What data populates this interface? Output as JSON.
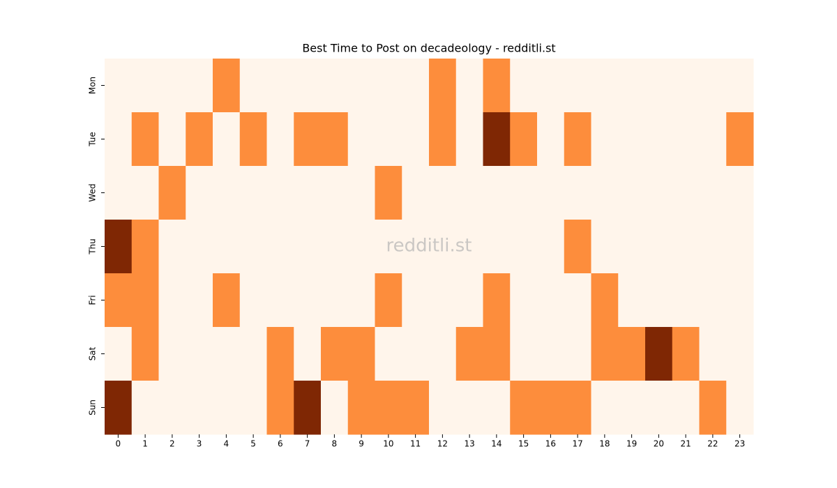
{
  "chart_data": {
    "type": "heatmap",
    "title": "Best Time to Post on decadeology - redditli.st",
    "watermark": "redditli.st",
    "x": [
      0,
      1,
      2,
      3,
      4,
      5,
      6,
      7,
      8,
      9,
      10,
      11,
      12,
      13,
      14,
      15,
      16,
      17,
      18,
      19,
      20,
      21,
      22,
      23
    ],
    "y": [
      "Mon",
      "Tue",
      "Wed",
      "Thu",
      "Fri",
      "Sat",
      "Sun"
    ],
    "values": [
      [
        0,
        0,
        0,
        0,
        1,
        0,
        0,
        0,
        0,
        0,
        0,
        0,
        1,
        0,
        1,
        0,
        0,
        0,
        0,
        0,
        0,
        0,
        0,
        0
      ],
      [
        0,
        1,
        0,
        1,
        0,
        1,
        0,
        1,
        1,
        0,
        0,
        0,
        1,
        0,
        2,
        1,
        0,
        1,
        0,
        0,
        0,
        0,
        0,
        1
      ],
      [
        0,
        0,
        1,
        0,
        0,
        0,
        0,
        0,
        0,
        0,
        1,
        0,
        0,
        0,
        0,
        0,
        0,
        0,
        0,
        0,
        0,
        0,
        0,
        0
      ],
      [
        2,
        1,
        0,
        0,
        0,
        0,
        0,
        0,
        0,
        0,
        0,
        0,
        0,
        0,
        0,
        0,
        0,
        1,
        0,
        0,
        0,
        0,
        0,
        0
      ],
      [
        1,
        1,
        0,
        0,
        1,
        0,
        0,
        0,
        0,
        0,
        1,
        0,
        0,
        0,
        1,
        0,
        0,
        0,
        1,
        0,
        0,
        0,
        0,
        0
      ],
      [
        0,
        1,
        0,
        0,
        0,
        0,
        1,
        0,
        1,
        1,
        0,
        0,
        0,
        1,
        1,
        0,
        0,
        0,
        1,
        1,
        2,
        1,
        0,
        0
      ],
      [
        2,
        0,
        0,
        0,
        0,
        0,
        1,
        2,
        0,
        1,
        1,
        1,
        0,
        0,
        0,
        1,
        1,
        1,
        0,
        0,
        0,
        0,
        1,
        0
      ]
    ],
    "zlim": [
      0,
      2
    ],
    "colormap": [
      "#fff5eb",
      "#fd8d3c",
      "#7f2704"
    ]
  }
}
